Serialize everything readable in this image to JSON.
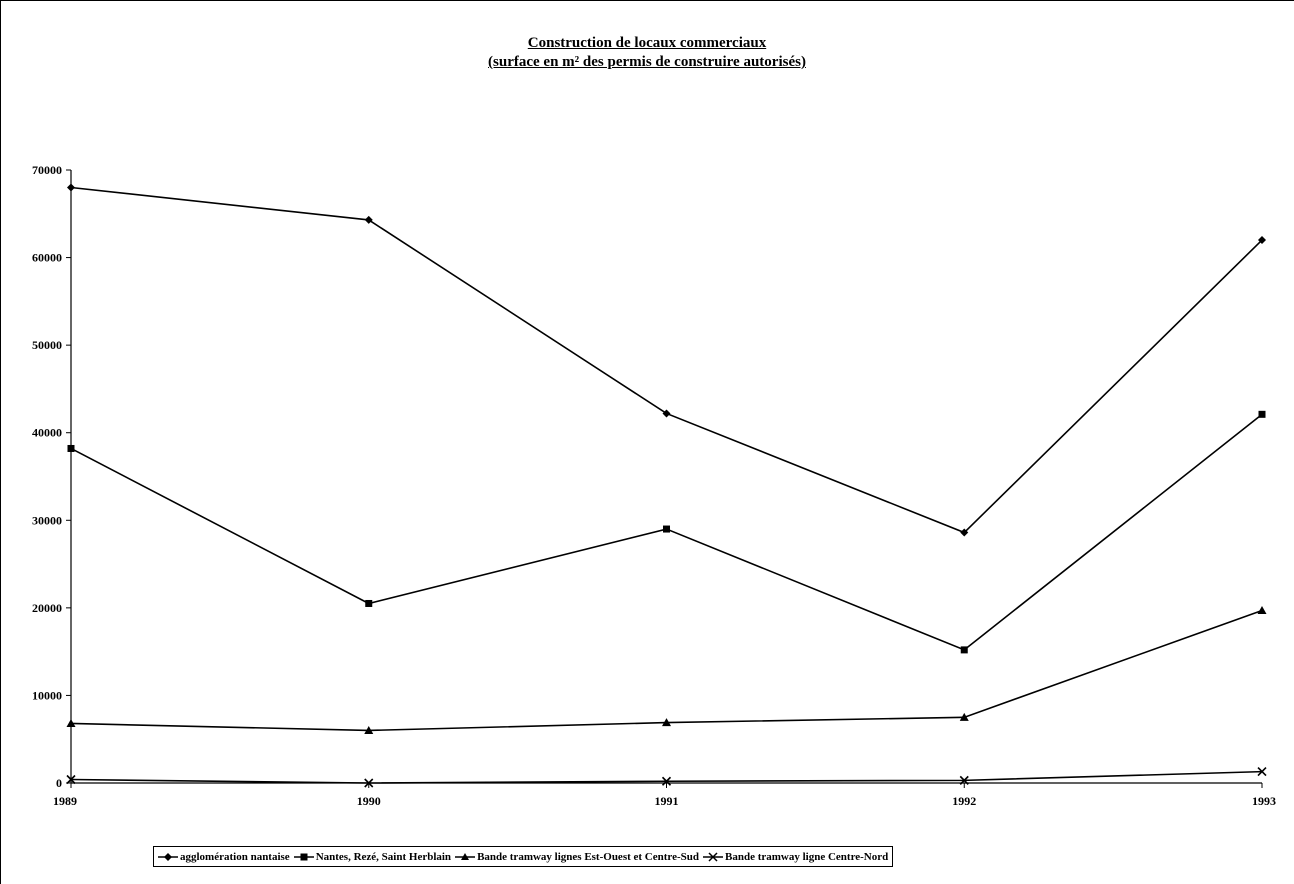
{
  "chart_data": {
    "type": "line",
    "title": "Construction de locaux commerciaux",
    "subtitle": "(surface en m² des permis de construire autorisés)",
    "categories": [
      "1989",
      "1990",
      "1991",
      "1992",
      "1993"
    ],
    "ylim": [
      0,
      70000
    ],
    "yticks": [
      "0",
      "10000",
      "20000",
      "30000",
      "40000",
      "50000",
      "60000",
      "70000"
    ],
    "grid": false,
    "legend_position": "bottom",
    "series": [
      {
        "name": "agglomération nantaise",
        "marker": "diamond",
        "values": [
          68000,
          64300,
          42200,
          28600,
          62000
        ]
      },
      {
        "name": "Nantes, Rezé, Saint Herblain",
        "marker": "square",
        "values": [
          38200,
          20500,
          29000,
          15200,
          42100
        ]
      },
      {
        "name": "Bande tramway lignes Est-Ouest et Centre-Sud",
        "marker": "triangle",
        "values": [
          6800,
          6000,
          6900,
          7500,
          19700
        ]
      },
      {
        "name": "Bande tramway ligne Centre-Nord",
        "marker": "x",
        "values": [
          400,
          0,
          200,
          300,
          1300
        ]
      }
    ]
  }
}
